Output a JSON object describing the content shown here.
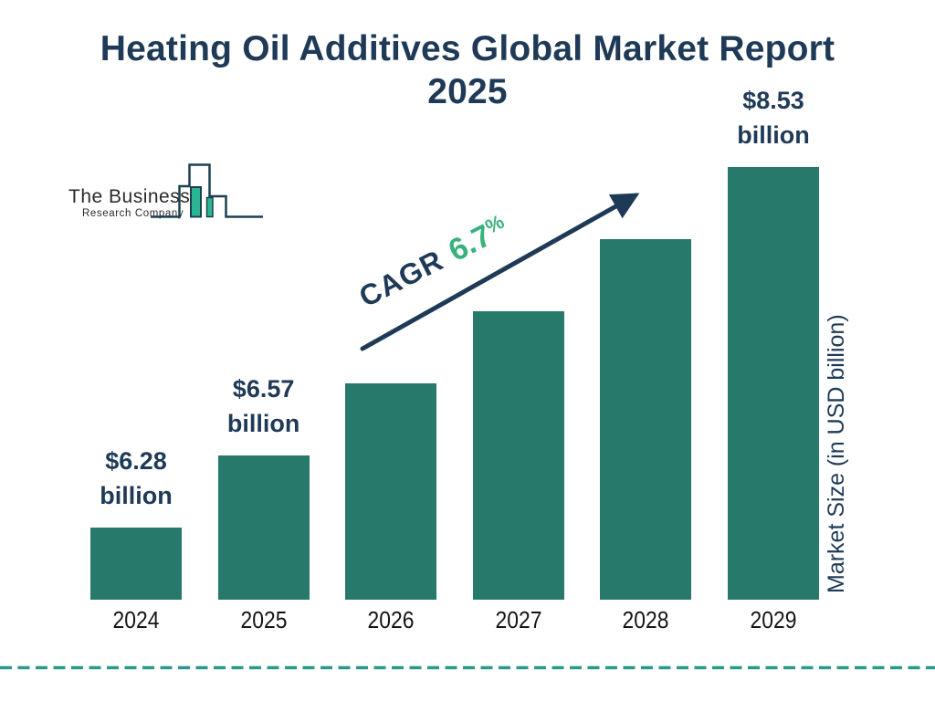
{
  "title": {
    "line1": "Heating Oil Additives Global Market Report",
    "line2": "2025"
  },
  "logo": {
    "name": "The Business",
    "subtitle": "Research Company"
  },
  "annotation": {
    "cagr_label": "CAGR",
    "cagr_value": "6.7",
    "percent_sign": "%"
  },
  "colors": {
    "navy": "#1f3a57",
    "bar_teal": "#26796b",
    "cagr_green": "#38b27b",
    "dashed_line_teal": "#2a9a8c",
    "logo_outline": "#1d4050",
    "logo_fill": "#2cb593"
  },
  "chart_data": {
    "type": "bar",
    "categories": [
      "2024",
      "2025",
      "2026",
      "2027",
      "2028",
      "2029"
    ],
    "values": [
      6.28,
      6.57,
      7.01,
      7.48,
      7.98,
      8.53
    ],
    "values_estimated": [
      false,
      false,
      true,
      true,
      true,
      false
    ],
    "data_labels": [
      "$6.28 billion",
      "$6.57 billion",
      "",
      "",
      "",
      "$8.53 billion"
    ],
    "unit": "USD billion",
    "ylabel": "Market Size (in USD billion)",
    "xlabel": "",
    "cagr_percent": 6.7,
    "grid": false,
    "legend": false
  }
}
